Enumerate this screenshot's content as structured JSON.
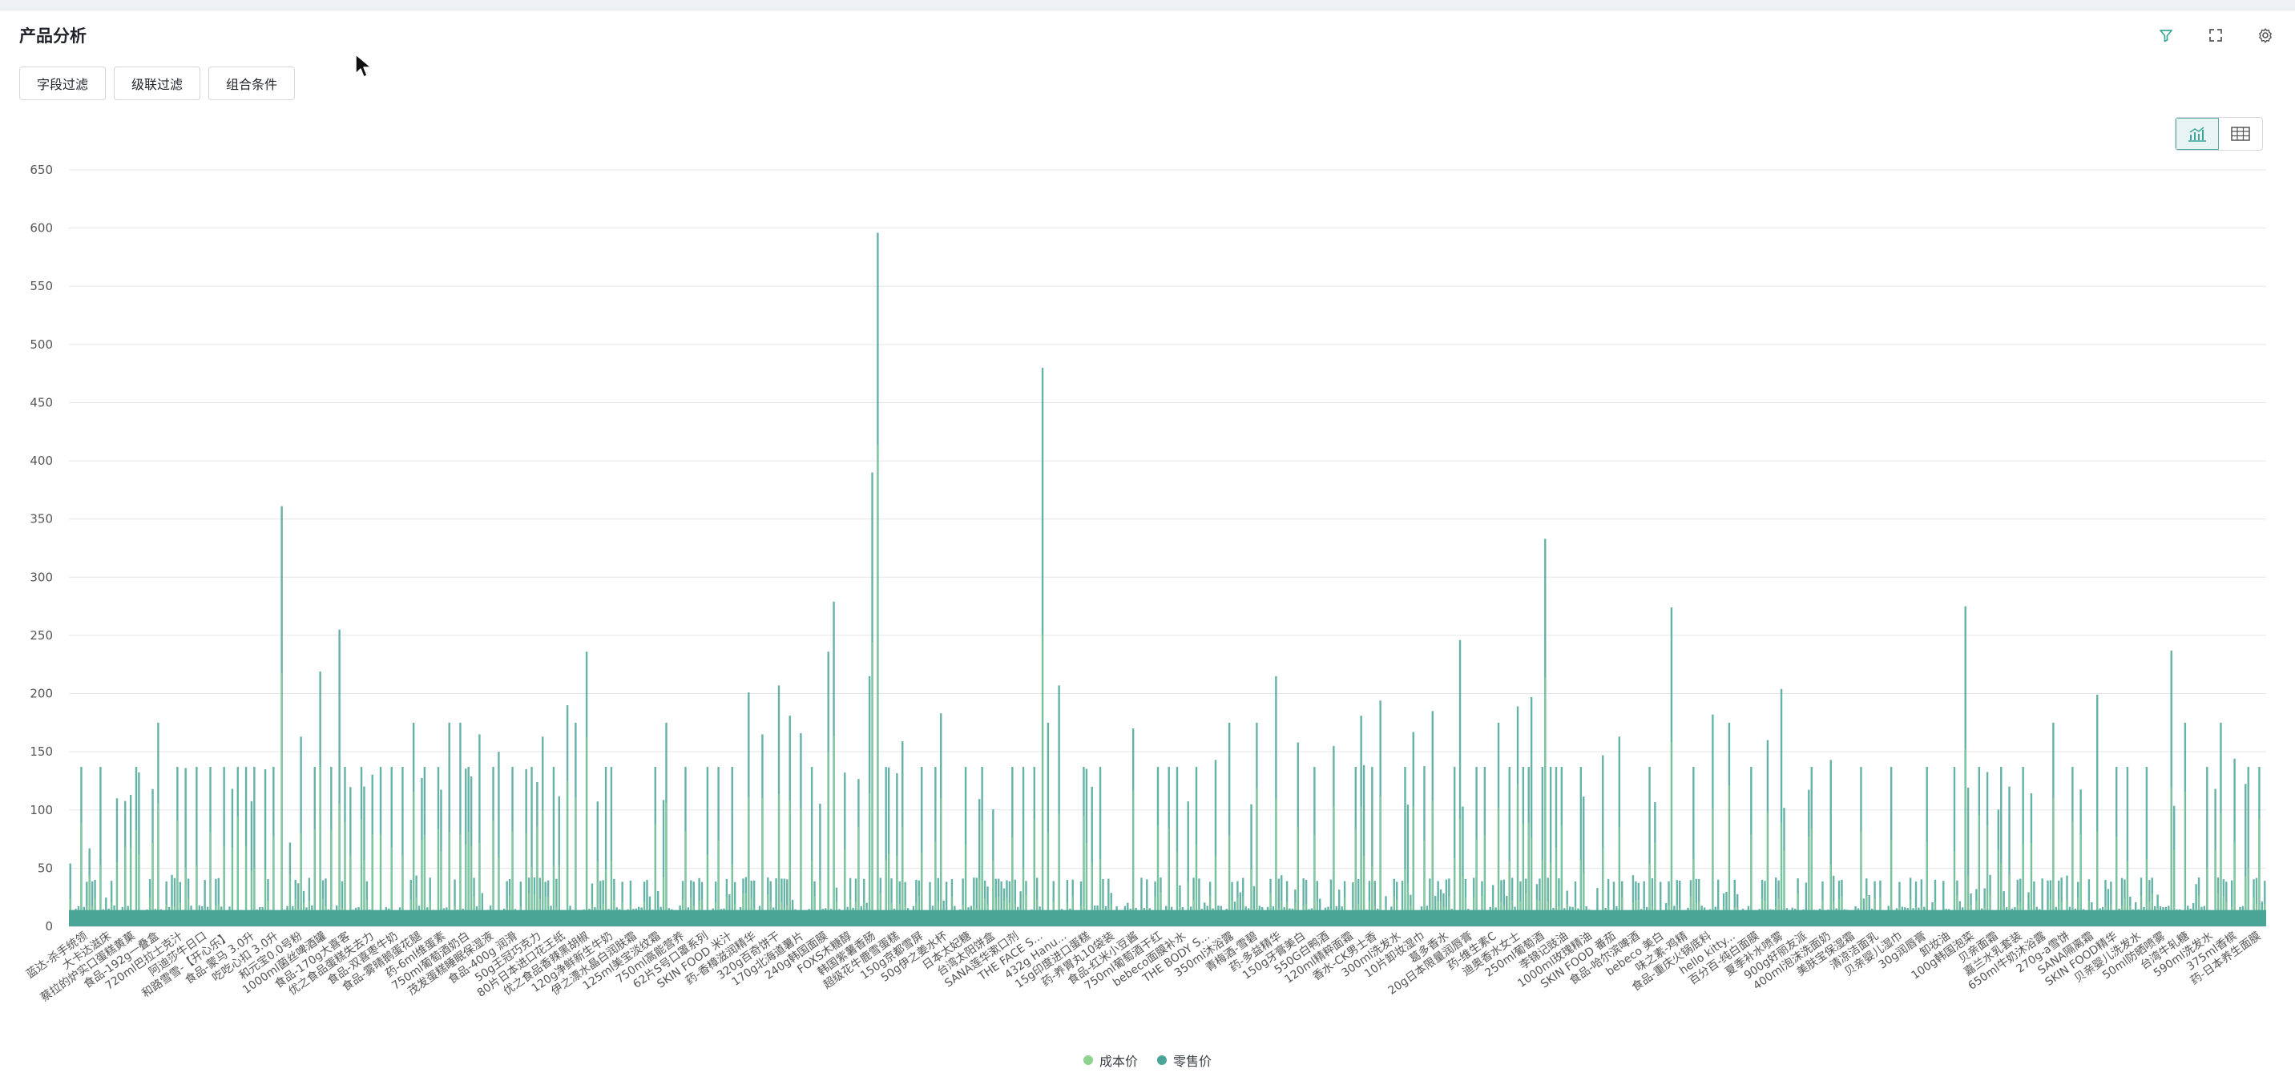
{
  "header": {
    "title": "产品分析",
    "icons": [
      "filter-icon",
      "fullscreen-icon",
      "settings-icon"
    ]
  },
  "filters": {
    "field_filter": "字段过滤",
    "cascade_filter": "级联过滤",
    "combo_condition": "组合条件"
  },
  "view_toggle": {
    "active": "chart",
    "icons": [
      "chart-view-icon",
      "table-view-icon"
    ]
  },
  "colors": {
    "cost": "#8fd38f",
    "retail": "#4aa597",
    "accent": "#3aa59a",
    "grid": "#e4e6ea"
  },
  "chart_data": {
    "type": "bar",
    "ylim": [
      0,
      650
    ],
    "yticks": [
      0,
      50,
      100,
      150,
      200,
      250,
      300,
      350,
      400,
      450,
      500,
      550,
      600,
      650
    ],
    "grid": true,
    "legend_position": "bottom-center",
    "series": [
      {
        "name": "成本价",
        "color": "#8fd38f"
      },
      {
        "name": "零售价",
        "color": "#4aa597"
      }
    ],
    "category_count": 800,
    "peaks": [
      {
        "at": 0.0,
        "value": 54
      },
      {
        "at": 0.0072,
        "value": 137
      },
      {
        "at": 0.013,
        "value": 67
      },
      {
        "at": 0.0195,
        "value": 137
      },
      {
        "at": 0.0312,
        "value": 110
      },
      {
        "at": 0.0442,
        "value": 137
      },
      {
        "at": 0.0559,
        "value": 118
      },
      {
        "at": 0.0597,
        "value": 175
      },
      {
        "at": 0.0727,
        "value": 137
      },
      {
        "at": 0.078,
        "value": 136
      },
      {
        "at": 0.0851,
        "value": 137
      },
      {
        "at": 0.0935,
        "value": 137
      },
      {
        "at": 0.1039,
        "value": 137
      },
      {
        "at": 0.1117,
        "value": 137
      },
      {
        "at": 0.1169,
        "value": 137
      },
      {
        "at": 0.1234,
        "value": 137
      },
      {
        "at": 0.1299,
        "value": 135
      },
      {
        "at": 0.1365,
        "value": 137
      },
      {
        "at": 0.1423,
        "value": 361
      },
      {
        "at": 0.1481,
        "value": 72
      },
      {
        "at": 0.1546,
        "value": 163
      },
      {
        "at": 0.1638,
        "value": 137
      },
      {
        "at": 0.1683,
        "value": 219
      },
      {
        "at": 0.1754,
        "value": 137
      },
      {
        "at": 0.18,
        "value": 255
      },
      {
        "at": 0.1845,
        "value": 137
      },
      {
        "at": 0.1943,
        "value": 137
      },
      {
        "at": 0.2072,
        "value": 137
      },
      {
        "at": 0.215,
        "value": 137
      },
      {
        "at": 0.2235,
        "value": 137
      },
      {
        "at": 0.23,
        "value": 175
      },
      {
        "at": 0.2378,
        "value": 137
      },
      {
        "at": 0.2462,
        "value": 137
      },
      {
        "at": 0.254,
        "value": 175
      },
      {
        "at": 0.2605,
        "value": 175
      },
      {
        "at": 0.267,
        "value": 137
      },
      {
        "at": 0.2748,
        "value": 165
      },
      {
        "at": 0.2826,
        "value": 137
      },
      {
        "at": 0.2878,
        "value": 150
      },
      {
        "at": 0.2956,
        "value": 137
      },
      {
        "at": 0.3099,
        "value": 137
      },
      {
        "at": 0.3164,
        "value": 163
      },
      {
        "at": 0.3248,
        "value": 137
      },
      {
        "at": 0.3326,
        "value": 190
      },
      {
        "at": 0.3391,
        "value": 175
      },
      {
        "at": 0.3456,
        "value": 236
      },
      {
        "at": 0.3585,
        "value": 137
      },
      {
        "at": 0.3632,
        "value": 137
      },
      {
        "at": 0.3923,
        "value": 137
      },
      {
        "at": 0.4001,
        "value": 175
      },
      {
        "at": 0.4118,
        "value": 137
      },
      {
        "at": 0.4262,
        "value": 137
      },
      {
        "at": 0.4352,
        "value": 137
      },
      {
        "at": 0.4431,
        "value": 137
      },
      {
        "at": 0.4553,
        "value": 201
      },
      {
        "at": 0.4644,
        "value": 165
      },
      {
        "at": 0.4754,
        "value": 207
      },
      {
        "at": 0.4826,
        "value": 181
      },
      {
        "at": 0.4895,
        "value": 166
      },
      {
        "at": 0.4969,
        "value": 137
      },
      {
        "at": 0.5071,
        "value": 236
      },
      {
        "at": 0.511,
        "value": 279
      },
      {
        "at": 0.5351,
        "value": 215
      },
      {
        "at": 0.5383,
        "value": 390
      },
      {
        "at": 0.5416,
        "value": 596
      },
      {
        "at": 0.5461,
        "value": 137
      },
      {
        "at": 0.5572,
        "value": 159
      },
      {
        "at": 0.5701,
        "value": 137
      },
      {
        "at": 0.5792,
        "value": 137
      },
      {
        "at": 0.5837,
        "value": 183
      },
      {
        "at": 0.6007,
        "value": 137
      },
      {
        "at": 0.6112,
        "value": 137
      },
      {
        "at": 0.632,
        "value": 137
      },
      {
        "at": 0.6391,
        "value": 137
      },
      {
        "at": 0.6456,
        "value": 137
      },
      {
        "at": 0.6509,
        "value": 480
      },
      {
        "at": 0.6555,
        "value": 175
      },
      {
        "at": 0.6625,
        "value": 207
      },
      {
        "at": 0.6788,
        "value": 137
      },
      {
        "at": 0.6906,
        "value": 137
      },
      {
        "at": 0.7131,
        "value": 170
      },
      {
        "at": 0.7294,
        "value": 137
      },
      {
        "at": 0.7359,
        "value": 137
      },
      {
        "at": 0.7424,
        "value": 137
      },
      {
        "at": 0.7552,
        "value": 137
      },
      {
        "at": 0.7676,
        "value": 143
      },
      {
        "at": 0.7767,
        "value": 175
      },
      {
        "at": 0.7943,
        "value": 175
      },
      {
        "at": 0.808,
        "value": 215
      },
      {
        "at": 0.8223,
        "value": 158
      },
      {
        "at": 0.8345,
        "value": 137
      },
      {
        "at": 0.8463,
        "value": 155
      },
      {
        "at": 0.8606,
        "value": 137
      },
      {
        "at": 0.8658,
        "value": 181
      },
      {
        "at": 0.873,
        "value": 137
      },
      {
        "at": 0.8782,
        "value": 194
      },
      {
        "at": 0.8938,
        "value": 137
      },
      {
        "at": 0.9003,
        "value": 167
      },
      {
        "at": 0.9082,
        "value": 137
      },
      {
        "at": 0.9135,
        "value": 185
      },
      {
        "at": 0.9277,
        "value": 137
      },
      {
        "at": 0.9317,
        "value": 246
      },
      {
        "at": 0.9415,
        "value": 137
      },
      {
        "at": 0.9485,
        "value": 137
      },
      {
        "at": 0.9576,
        "value": 175
      },
      {
        "at": 0.9641,
        "value": 137
      },
      {
        "at": 0.9693,
        "value": 189
      },
      {
        "at": 0.9745,
        "value": 137
      },
      {
        "at": 0.9797,
        "value": 197
      },
      {
        "at": 0.987,
        "value": 137
      },
      {
        "at": 0.9914,
        "value": 137
      },
      {
        "at": 0.9966,
        "value": 137
      }
    ],
    "note_peaks_right": [
      {
        "at": 0.004,
        "value": 137
      },
      {
        "at": 0.012,
        "value": 333
      },
      {
        "at": 0.0195,
        "value": 137
      },
      {
        "at": 0.028,
        "value": 137
      },
      {
        "at": 0.038,
        "value": 147
      },
      {
        "at": 0.046,
        "value": 163
      },
      {
        "at": 0.06,
        "value": 137
      },
      {
        "at": 0.07,
        "value": 274
      },
      {
        "at": 0.08,
        "value": 137
      },
      {
        "at": 0.088,
        "value": 182
      },
      {
        "at": 0.096,
        "value": 175
      },
      {
        "at": 0.106,
        "value": 137
      },
      {
        "at": 0.114,
        "value": 160
      },
      {
        "at": 0.12,
        "value": 204
      },
      {
        "at": 0.134,
        "value": 137
      },
      {
        "at": 0.142,
        "value": 143
      },
      {
        "at": 0.156,
        "value": 137
      },
      {
        "at": 0.17,
        "value": 137
      },
      {
        "at": 0.186,
        "value": 137
      },
      {
        "at": 0.198,
        "value": 137
      },
      {
        "at": 0.204,
        "value": 275
      },
      {
        "at": 0.21,
        "value": 137
      },
      {
        "at": 0.22,
        "value": 137
      },
      {
        "at": 0.23,
        "value": 137
      },
      {
        "at": 0.244,
        "value": 175
      },
      {
        "at": 0.252,
        "value": 137
      },
      {
        "at": 0.264,
        "value": 199
      },
      {
        "at": 0.272,
        "value": 137
      },
      {
        "at": 0.278,
        "value": 137
      },
      {
        "at": 0.286,
        "value": 137
      },
      {
        "at": 0.298,
        "value": 237
      },
      {
        "at": 0.304,
        "value": 175
      },
      {
        "at": 0.314,
        "value": 137
      },
      {
        "at": 0.32,
        "value": 175
      },
      {
        "at": 0.326,
        "value": 144
      },
      {
        "at": 0.332,
        "value": 137
      },
      {
        "at": 0.337,
        "value": 137
      }
    ],
    "x_tick_labels": [
      "蓝达-杀手统领",
      "大卡达滋床",
      "蔡拉的炉实口蛋糕黄菓",
      "食品-192g一叠盒",
      "720ml巴拉士克汁",
      "阿迪莎牛日口",
      "和路雪雪-【开心乐】",
      "食品-蒙马 3.0升",
      "吃吃心扣 3.0升",
      "和元宝0.0号粉",
      "1000ml菌丝啤酒罐",
      "食品-170g大喜客",
      "优之食品蛋糕失去力",
      "食品-双喜枣牛奶",
      "食品-雾晴鹅蛋花腿",
      "药-6ml维蛋素",
      "750ml葡萄酒奶白",
      "茂发蛋糕睡眠保湿液",
      "食品-400g 润滑",
      "50g王冠巧克力",
      "80片日本进口花王纸",
      "优之食品香辣黑胡椒",
      "120g净鲜新生牛奶",
      "伊之漂水晶白润肤霜",
      "125ml美宝淡纹霜",
      "750ml高能营养",
      "62片S号口罩系列",
      "SKIN FOOD 米汁",
      "药-香樟滋润精华",
      "320g百奇饼干",
      "170g北海道薯片",
      "240g韩国面膜",
      "FOXS木糖醇",
      "韩国紫薯香肠",
      "超级花牛鹿雪蛋糕",
      "150g京都雪屏",
      "50g伊之姜水杯",
      "日本太妃糖",
      "台湾太阳饼盒",
      "SANA莲华漱口剂",
      "THE FACE S...",
      "432g Hanu...",
      "15g印度进口蛋糕",
      "药-养胃丸10袋装",
      "食品-红米小豆酱",
      "750ml葡萄酒干红",
      "bebeco面膜补水",
      "THE BODY S...",
      "350ml沐浴露",
      "青梅酒-雪碧",
      "药-多益精华",
      "150g牙膏美白",
      "550G白鸭酒",
      "120ml精粹面霜",
      "香水-CK男士香",
      "300ml洗发水",
      "10片卸妆湿巾",
      "葛多香水",
      "20g日本限量润唇膏",
      "药-维生素C",
      "迪奥香水女士",
      "250ml葡萄酒",
      "李锦记豉油",
      "1000ml玫瑰精油",
      "SKIN FOOD 番茄",
      "食品-哈尔滨啤酒",
      "bebeco 美白",
      "味之素-鸡精",
      "食品-重庆火锅底料",
      "hello kitty...",
      "百分百-纯白面膜",
      "夏季补水喷雾",
      "900g好丽友派",
      "400ml泡沫洗面奶",
      "美肤宝保湿霜",
      "清凉洁面乳",
      "贝亲婴儿湿巾",
      "30g润唇膏",
      "卸妆油",
      "100g韩国泡菜",
      "贝亲面霜",
      "嘉兰水乳套装",
      "650ml牛奶沐浴露",
      "270g-a雪饼",
      "SANA隔离霜",
      "SKIN FOOD精华",
      "贝亲婴儿洗发水",
      "50ml防晒喷雾",
      "台湾牛轧糖",
      "590ml洗发水",
      "375ml香槟",
      "药-日本养生面膜"
    ]
  }
}
